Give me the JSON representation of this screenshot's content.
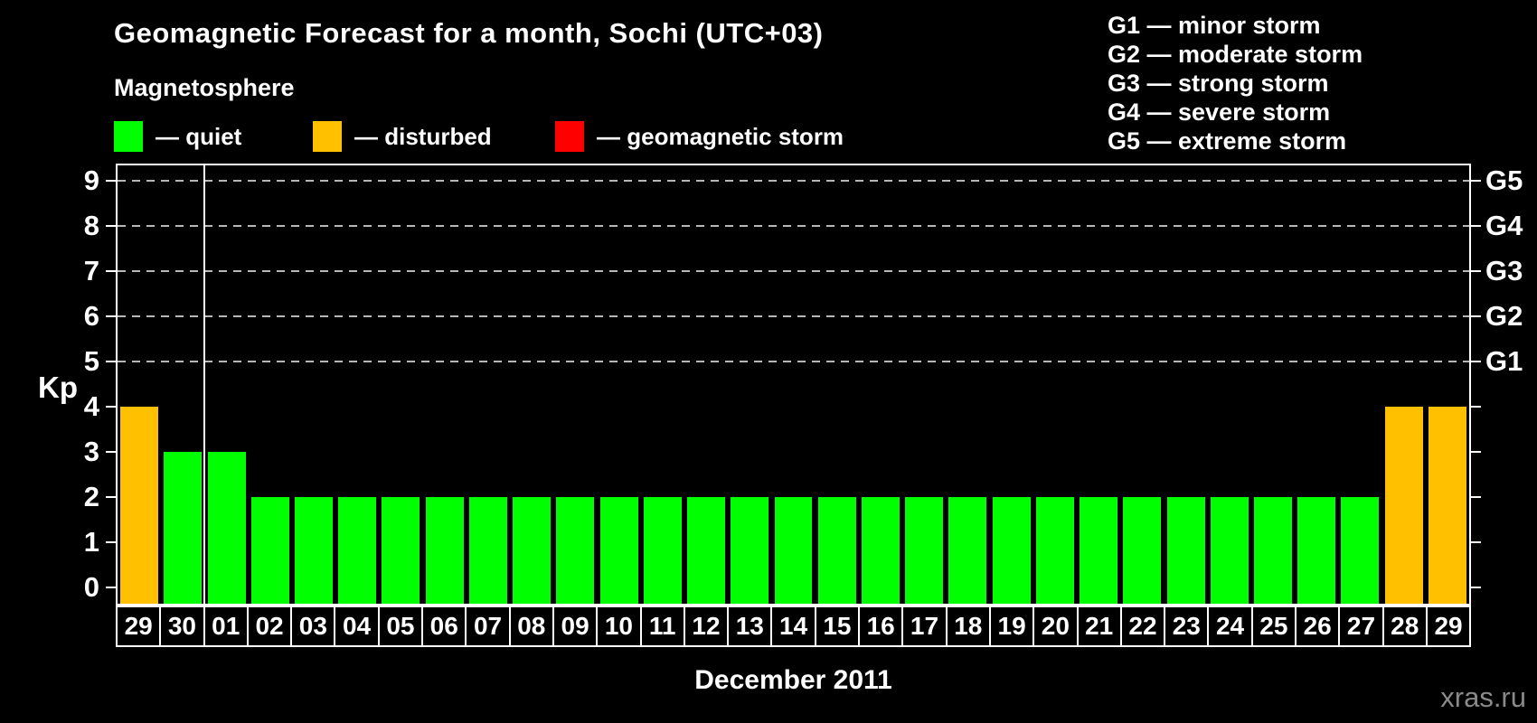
{
  "title": "Geomagnetic Forecast for a month, Sochi (UTC+03)",
  "legend": {
    "heading": "Magnetosphere",
    "items": [
      {
        "label": "— quiet",
        "status": "quiet",
        "color": "#00ff00"
      },
      {
        "label": "— disturbed",
        "status": "disturbed",
        "color": "#ffc000"
      },
      {
        "label": "— geomagnetic storm",
        "status": "storm",
        "color": "#ff0000"
      }
    ]
  },
  "storm_scale": {
    "lines": [
      "G1 — minor storm",
      "G2 — moderate storm",
      "G3 — strong storm",
      "G4 — severe storm",
      "G5 — extreme storm"
    ]
  },
  "watermark": "xras.ru",
  "chart_data": {
    "type": "bar",
    "title": "Geomagnetic Forecast for a month, Sochi (UTC+03)",
    "xlabel": "December 2011",
    "ylabel": "Kp",
    "ylim": [
      0,
      9
    ],
    "yticks": [
      0,
      1,
      2,
      3,
      4,
      5,
      6,
      7,
      8,
      9
    ],
    "gridlines_at_kp": [
      5,
      6,
      7,
      8,
      9
    ],
    "grid": "dashed horizontal lines at storm levels only",
    "legend_position": "top-left",
    "right_axis_labels": [
      {
        "label": "G1",
        "kp": 5
      },
      {
        "label": "G2",
        "kp": 6
      },
      {
        "label": "G3",
        "kp": 7
      },
      {
        "label": "G4",
        "kp": 8
      },
      {
        "label": "G5",
        "kp": 9
      }
    ],
    "month_separator_after_index": 1,
    "categories": [
      "29",
      "30",
      "01",
      "02",
      "03",
      "04",
      "05",
      "06",
      "07",
      "08",
      "09",
      "10",
      "11",
      "12",
      "13",
      "14",
      "15",
      "16",
      "17",
      "18",
      "19",
      "20",
      "21",
      "22",
      "23",
      "24",
      "25",
      "26",
      "27",
      "28",
      "29"
    ],
    "values": [
      4,
      3,
      3,
      2,
      2,
      2,
      2,
      2,
      2,
      2,
      2,
      2,
      2,
      2,
      2,
      2,
      2,
      2,
      2,
      2,
      2,
      2,
      2,
      2,
      2,
      2,
      2,
      2,
      2,
      4,
      4
    ],
    "statuses": [
      "disturbed",
      "quiet",
      "quiet",
      "quiet",
      "quiet",
      "quiet",
      "quiet",
      "quiet",
      "quiet",
      "quiet",
      "quiet",
      "quiet",
      "quiet",
      "quiet",
      "quiet",
      "quiet",
      "quiet",
      "quiet",
      "quiet",
      "quiet",
      "quiet",
      "quiet",
      "quiet",
      "quiet",
      "quiet",
      "quiet",
      "quiet",
      "quiet",
      "quiet",
      "disturbed",
      "disturbed"
    ],
    "status_colors": {
      "quiet": "#00ff00",
      "disturbed": "#ffc000",
      "storm": "#ff0000"
    }
  }
}
